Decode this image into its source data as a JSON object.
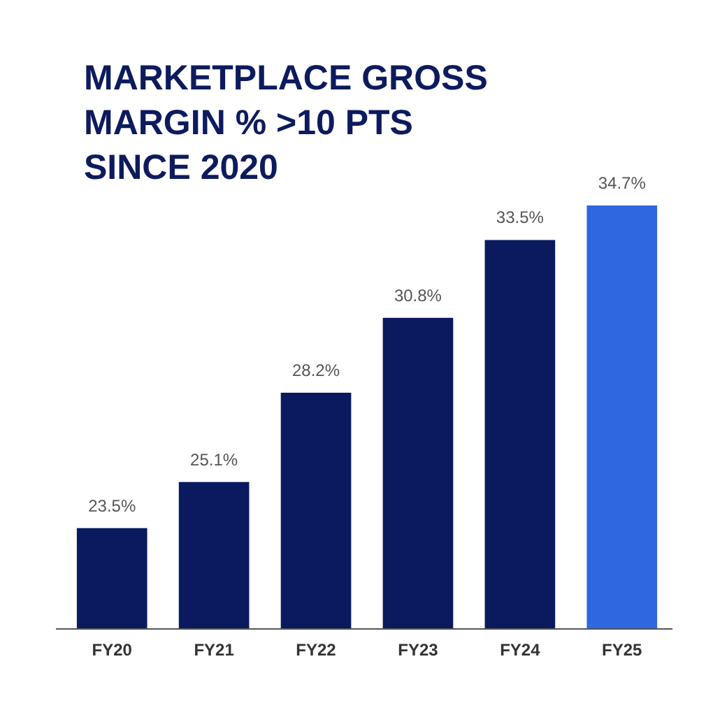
{
  "chart_data": {
    "type": "bar",
    "title": "MARKETPLACE GROSS MARGIN % >10 PTS SINCE 2020",
    "categories": [
      "FY20",
      "FY21",
      "FY22",
      "FY23",
      "FY24",
      "FY25"
    ],
    "values": [
      23.5,
      25.1,
      28.2,
      30.8,
      33.5,
      34.7
    ],
    "colors": [
      "#0b1a5e",
      "#0b1a5e",
      "#0b1a5e",
      "#0b1a5e",
      "#0b1a5e",
      "#2f67e0"
    ],
    "value_labels": [
      "23.5%",
      "25.1%",
      "28.2%",
      "30.8%",
      "33.5%",
      "34.7%"
    ],
    "ylim": [
      20,
      34.7
    ],
    "tick_labels": "x"
  }
}
